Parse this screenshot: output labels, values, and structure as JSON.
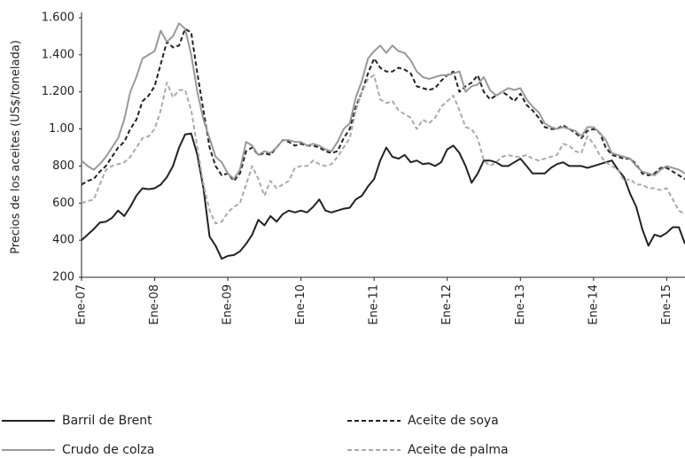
{
  "chart_data": {
    "type": "line",
    "y_label": "Precios de los aceites (US$/tonelada)",
    "categories": [
      "Ene-07",
      null,
      null,
      null,
      null,
      null,
      null,
      null,
      null,
      null,
      null,
      null,
      "Ene-08",
      null,
      null,
      null,
      null,
      null,
      null,
      null,
      null,
      null,
      null,
      null,
      "Ene-09",
      null,
      null,
      null,
      null,
      null,
      null,
      null,
      null,
      null,
      null,
      null,
      "Ene-10",
      null,
      null,
      null,
      null,
      null,
      null,
      null,
      null,
      null,
      null,
      null,
      "Ene-11",
      null,
      null,
      null,
      null,
      null,
      null,
      null,
      null,
      null,
      null,
      null,
      "Ene-12",
      null,
      null,
      null,
      null,
      null,
      null,
      null,
      null,
      null,
      null,
      null,
      "Ene-13",
      null,
      null,
      null,
      null,
      null,
      null,
      null,
      null,
      null,
      null,
      null,
      "Ene-14",
      null,
      null,
      null,
      null,
      null,
      null,
      null,
      null,
      null,
      null,
      null,
      "Ene-15",
      null,
      null,
      null
    ],
    "ylim": [
      200,
      1600
    ],
    "yticks": [
      200,
      400,
      600,
      800,
      {
        "value": 1000,
        "label": "1.00"
      },
      {
        "value": 1200,
        "label": "1.200"
      },
      {
        "value": 1400,
        "label": "1.400"
      },
      {
        "value": 1600,
        "label": "1.600"
      }
    ],
    "grid": false,
    "series": [
      {
        "name": "Barril de Brent",
        "color": "#222222",
        "style": "solid",
        "values": [
          400,
          430,
          460,
          495,
          500,
          520,
          560,
          530,
          580,
          640,
          680,
          675,
          680,
          700,
          740,
          800,
          900,
          970,
          975,
          860,
          680,
          420,
          370,
          300,
          315,
          320,
          340,
          380,
          430,
          510,
          480,
          530,
          500,
          540,
          560,
          550,
          560,
          550,
          580,
          620,
          560,
          550,
          560,
          570,
          575,
          620,
          640,
          690,
          730,
          830,
          900,
          850,
          840,
          860,
          820,
          830,
          810,
          815,
          800,
          820,
          890,
          910,
          870,
          800,
          710,
          760,
          830,
          830,
          820,
          800,
          800,
          820,
          840,
          800,
          760,
          760,
          760,
          790,
          810,
          820,
          800,
          800,
          800,
          790,
          800,
          810,
          820,
          830,
          780,
          740,
          650,
          580,
          460,
          370,
          430,
          420,
          440,
          470,
          470,
          380
        ]
      },
      {
        "name": "Aceite de soya",
        "color": "#222222",
        "style": "dashed",
        "values": [
          700,
          720,
          730,
          770,
          800,
          850,
          900,
          930,
          1000,
          1050,
          1150,
          1180,
          1230,
          1350,
          1470,
          1440,
          1450,
          1540,
          1520,
          1300,
          1100,
          900,
          800,
          750,
          760,
          720,
          760,
          880,
          900,
          860,
          870,
          860,
          900,
          940,
          930,
          910,
          920,
          910,
          910,
          900,
          880,
          870,
          880,
          950,
          1000,
          1120,
          1200,
          1300,
          1380,
          1330,
          1310,
          1310,
          1330,
          1320,
          1300,
          1230,
          1220,
          1210,
          1220,
          1260,
          1290,
          1310,
          1200,
          1230,
          1250,
          1290,
          1200,
          1160,
          1180,
          1200,
          1180,
          1150,
          1190,
          1130,
          1100,
          1060,
          1010,
          1000,
          1000,
          1020,
          1000,
          980,
          950,
          990,
          1000,
          980,
          900,
          860,
          850,
          840,
          840,
          810,
          760,
          750,
          760,
          790,
          790,
          770,
          750,
          730
        ]
      },
      {
        "name": "Crudo de colza",
        "color": "#999999",
        "style": "solid",
        "values": [
          830,
          800,
          780,
          810,
          850,
          900,
          950,
          1050,
          1200,
          1280,
          1380,
          1400,
          1420,
          1530,
          1470,
          1500,
          1570,
          1540,
          1400,
          1200,
          1050,
          950,
          850,
          820,
          760,
          730,
          780,
          930,
          910,
          860,
          880,
          870,
          900,
          940,
          940,
          930,
          930,
          910,
          920,
          910,
          890,
          880,
          930,
          1000,
          1030,
          1170,
          1260,
          1380,
          1420,
          1450,
          1410,
          1450,
          1420,
          1410,
          1370,
          1310,
          1280,
          1270,
          1280,
          1290,
          1290,
          1300,
          1310,
          1200,
          1230,
          1240,
          1280,
          1210,
          1180,
          1200,
          1220,
          1210,
          1220,
          1160,
          1120,
          1090,
          1030,
          1010,
          1000,
          1010,
          1000,
          990,
          960,
          1010,
          1010,
          980,
          940,
          870,
          860,
          850,
          840,
          800,
          770,
          760,
          750,
          780,
          800,
          790,
          780,
          760
        ]
      },
      {
        "name": "Aceite de palma",
        "color": "#aaaaaa",
        "style": "dashed",
        "values": [
          600,
          610,
          620,
          700,
          780,
          800,
          810,
          820,
          850,
          900,
          950,
          960,
          1000,
          1100,
          1250,
          1170,
          1210,
          1210,
          1100,
          900,
          700,
          560,
          490,
          500,
          550,
          580,
          600,
          700,
          800,
          730,
          640,
          720,
          680,
          700,
          720,
          790,
          800,
          800,
          830,
          810,
          800,
          810,
          850,
          900,
          950,
          1100,
          1200,
          1270,
          1290,
          1160,
          1140,
          1150,
          1100,
          1080,
          1060,
          1000,
          1050,
          1030,
          1060,
          1120,
          1150,
          1180,
          1100,
          1010,
          1000,
          950,
          830,
          800,
          820,
          850,
          860,
          850,
          850,
          860,
          840,
          830,
          840,
          850,
          860,
          920,
          910,
          880,
          870,
          960,
          920,
          860,
          820,
          800,
          780,
          720,
          730,
          700,
          700,
          680,
          680,
          670,
          680,
          620,
          560,
          540
        ]
      }
    ]
  }
}
